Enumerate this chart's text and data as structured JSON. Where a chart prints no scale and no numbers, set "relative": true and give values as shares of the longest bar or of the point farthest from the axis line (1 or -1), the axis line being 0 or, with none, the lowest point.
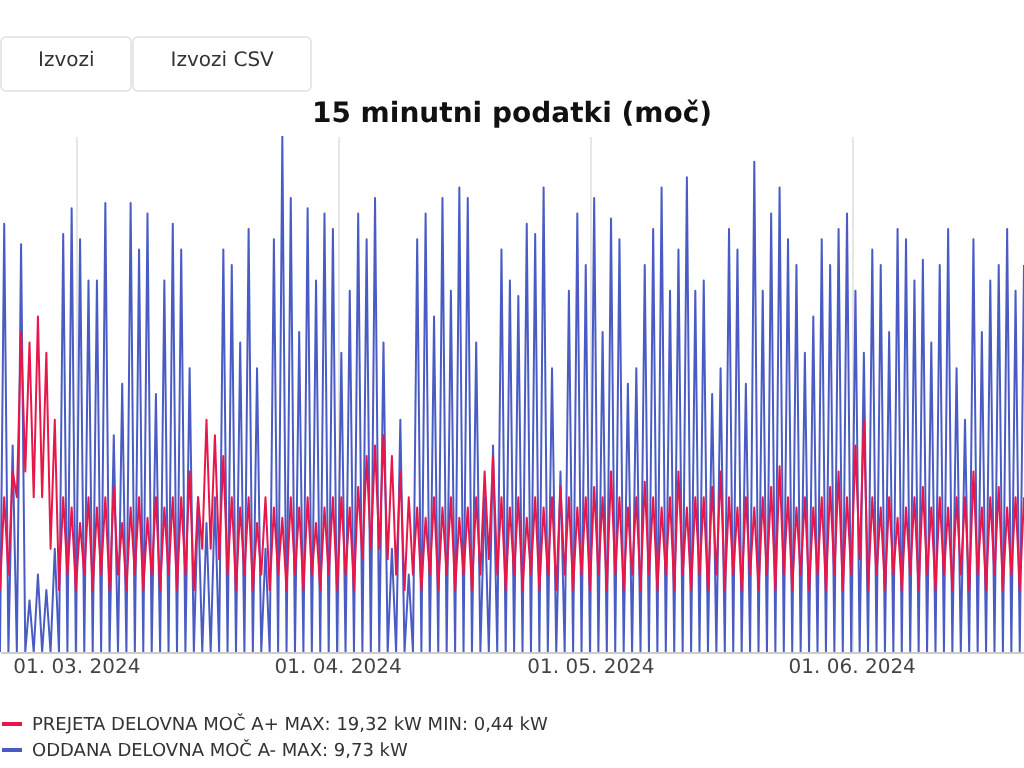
{
  "chart_data": {
    "type": "line",
    "title": "15 minutni podatki (moč)",
    "annotations": [
      "Izvozi",
      "Izvozi CSV"
    ],
    "relative": true,
    "grid": "x",
    "legend": "bottom",
    "marker": "none",
    "line_style": "solid",
    "xlim": [
      "2024-02-21",
      "2024-06-21T12:00"
    ],
    "xticks": [
      {
        "value": "2024-03-01",
        "label": "01. 03. 2024"
      },
      {
        "value": "2024-04-01",
        "label": "01. 04. 2024"
      },
      {
        "value": "2024-05-01",
        "label": "01. 05. 2024"
      },
      {
        "value": "2024-06-01",
        "label": "01. 06. 2024"
      }
    ],
    "x": [
      "2024-02-21T00:00",
      "2024-02-21T12:00",
      "2024-02-22T00:00",
      "2024-02-22T12:00",
      "2024-02-23T00:00",
      "2024-02-23T12:00",
      "2024-02-24T00:00",
      "2024-02-24T12:00",
      "2024-02-25T00:00",
      "2024-02-25T12:00",
      "2024-02-26T00:00",
      "2024-02-26T12:00",
      "2024-02-27T00:00",
      "2024-02-27T12:00",
      "2024-02-28T00:00",
      "2024-02-28T12:00",
      "2024-02-29T00:00",
      "2024-02-29T12:00",
      "2024-03-01T00:00",
      "2024-03-01T12:00",
      "2024-03-02T00:00",
      "2024-03-02T12:00",
      "2024-03-03T00:00",
      "2024-03-03T12:00",
      "2024-03-04T00:00",
      "2024-03-04T12:00",
      "2024-03-05T00:00",
      "2024-03-05T12:00",
      "2024-03-06T00:00",
      "2024-03-06T12:00",
      "2024-03-07T00:00",
      "2024-03-07T12:00",
      "2024-03-08T00:00",
      "2024-03-08T12:00",
      "2024-03-09T00:00",
      "2024-03-09T12:00",
      "2024-03-10T00:00",
      "2024-03-10T12:00",
      "2024-03-11T00:00",
      "2024-03-11T12:00",
      "2024-03-12T00:00",
      "2024-03-12T12:00",
      "2024-03-13T00:00",
      "2024-03-13T12:00",
      "2024-03-14T00:00",
      "2024-03-14T12:00",
      "2024-03-15T00:00",
      "2024-03-15T12:00",
      "2024-03-16T00:00",
      "2024-03-16T12:00",
      "2024-03-17T00:00",
      "2024-03-17T12:00",
      "2024-03-18T00:00",
      "2024-03-18T12:00",
      "2024-03-19T00:00",
      "2024-03-19T12:00",
      "2024-03-20T00:00",
      "2024-03-20T12:00",
      "2024-03-21T00:00",
      "2024-03-21T12:00",
      "2024-03-22T00:00",
      "2024-03-22T12:00",
      "2024-03-23T00:00",
      "2024-03-23T12:00",
      "2024-03-24T00:00",
      "2024-03-24T12:00",
      "2024-03-25T00:00",
      "2024-03-25T12:00",
      "2024-03-26T00:00",
      "2024-03-26T12:00",
      "2024-03-27T00:00",
      "2024-03-27T12:00",
      "2024-03-28T00:00",
      "2024-03-28T12:00",
      "2024-03-29T00:00",
      "2024-03-29T12:00",
      "2024-03-30T00:00",
      "2024-03-30T12:00",
      "2024-03-31T00:00",
      "2024-03-31T12:00",
      "2024-04-01T00:00",
      "2024-04-01T12:00",
      "2024-04-02T00:00",
      "2024-04-02T12:00",
      "2024-04-03T00:00",
      "2024-04-03T12:00",
      "2024-04-04T00:00",
      "2024-04-04T12:00",
      "2024-04-05T00:00",
      "2024-04-05T12:00",
      "2024-04-06T00:00",
      "2024-04-06T12:00",
      "2024-04-07T00:00",
      "2024-04-07T12:00",
      "2024-04-08T00:00",
      "2024-04-08T12:00",
      "2024-04-09T00:00",
      "2024-04-09T12:00",
      "2024-04-10T00:00",
      "2024-04-10T12:00",
      "2024-04-11T00:00",
      "2024-04-11T12:00",
      "2024-04-12T00:00",
      "2024-04-12T12:00",
      "2024-04-13T00:00",
      "2024-04-13T12:00",
      "2024-04-14T00:00",
      "2024-04-14T12:00",
      "2024-04-15T00:00",
      "2024-04-15T12:00",
      "2024-04-16T00:00",
      "2024-04-16T12:00",
      "2024-04-17T00:00",
      "2024-04-17T12:00",
      "2024-04-18T00:00",
      "2024-04-18T12:00",
      "2024-04-19T00:00",
      "2024-04-19T12:00",
      "2024-04-20T00:00",
      "2024-04-20T12:00",
      "2024-04-21T00:00",
      "2024-04-21T12:00",
      "2024-04-22T00:00",
      "2024-04-22T12:00",
      "2024-04-23T00:00",
      "2024-04-23T12:00",
      "2024-04-24T00:00",
      "2024-04-24T12:00",
      "2024-04-25T00:00",
      "2024-04-25T12:00",
      "2024-04-26T00:00",
      "2024-04-26T12:00",
      "2024-04-27T00:00",
      "2024-04-27T12:00",
      "2024-04-28T00:00",
      "2024-04-28T12:00",
      "2024-04-29T00:00",
      "2024-04-29T12:00",
      "2024-04-30T00:00",
      "2024-04-30T12:00",
      "2024-05-01T00:00",
      "2024-05-01T12:00",
      "2024-05-02T00:00",
      "2024-05-02T12:00",
      "2024-05-03T00:00",
      "2024-05-03T12:00",
      "2024-05-04T00:00",
      "2024-05-04T12:00",
      "2024-05-05T00:00",
      "2024-05-05T12:00",
      "2024-05-06T00:00",
      "2024-05-06T12:00",
      "2024-05-07T00:00",
      "2024-05-07T12:00",
      "2024-05-08T00:00",
      "2024-05-08T12:00",
      "2024-05-09T00:00",
      "2024-05-09T12:00",
      "2024-05-10T00:00",
      "2024-05-10T12:00",
      "2024-05-11T00:00",
      "2024-05-11T12:00",
      "2024-05-12T00:00",
      "2024-05-12T12:00",
      "2024-05-13T00:00",
      "2024-05-13T12:00",
      "2024-05-14T00:00",
      "2024-05-14T12:00",
      "2024-05-15T00:00",
      "2024-05-15T12:00",
      "2024-05-16T00:00",
      "2024-05-16T12:00",
      "2024-05-17T00:00",
      "2024-05-17T12:00",
      "2024-05-18T00:00",
      "2024-05-18T12:00",
      "2024-05-19T00:00",
      "2024-05-19T12:00",
      "2024-05-20T00:00",
      "2024-05-20T12:00",
      "2024-05-21T00:00",
      "2024-05-21T12:00",
      "2024-05-22T00:00",
      "2024-05-22T12:00",
      "2024-05-23T00:00",
      "2024-05-23T12:00",
      "2024-05-24T00:00",
      "2024-05-24T12:00",
      "2024-05-25T00:00",
      "2024-05-25T12:00",
      "2024-05-26T00:00",
      "2024-05-26T12:00",
      "2024-05-27T00:00",
      "2024-05-27T12:00",
      "2024-05-28T00:00",
      "2024-05-28T12:00",
      "2024-05-29T00:00",
      "2024-05-29T12:00",
      "2024-05-30T00:00",
      "2024-05-30T12:00",
      "2024-05-31T00:00",
      "2024-05-31T12:00",
      "2024-06-01T00:00",
      "2024-06-01T12:00",
      "2024-06-02T00:00",
      "2024-06-02T12:00",
      "2024-06-03T00:00",
      "2024-06-03T12:00",
      "2024-06-04T00:00",
      "2024-06-04T12:00",
      "2024-06-05T00:00",
      "2024-06-05T12:00",
      "2024-06-06T00:00",
      "2024-06-06T12:00",
      "2024-06-07T00:00",
      "2024-06-07T12:00",
      "2024-06-08T00:00",
      "2024-06-08T12:00",
      "2024-06-09T00:00",
      "2024-06-09T12:00",
      "2024-06-10T00:00",
      "2024-06-10T12:00",
      "2024-06-11T00:00",
      "2024-06-11T12:00",
      "2024-06-12T00:00",
      "2024-06-12T12:00",
      "2024-06-13T00:00",
      "2024-06-13T12:00",
      "2024-06-14T00:00",
      "2024-06-14T12:00",
      "2024-06-15T00:00",
      "2024-06-15T12:00",
      "2024-06-16T00:00",
      "2024-06-16T12:00",
      "2024-06-17T00:00",
      "2024-06-17T12:00",
      "2024-06-18T00:00",
      "2024-06-18T12:00",
      "2024-06-19T00:00",
      "2024-06-19T12:00",
      "2024-06-20T00:00",
      "2024-06-20T12:00",
      "2024-06-21T00:00",
      "2024-06-21T12:00"
    ],
    "series": [
      {
        "name": "PREJETA DELOVNA MOČ A+ MAX: 19,32 kW MIN: 0,44 kW",
        "color": "#e8174a",
        "values": [
          0.12,
          0.3,
          0.15,
          0.35,
          0.3,
          0.62,
          0.35,
          0.6,
          0.3,
          0.65,
          0.3,
          0.58,
          0.2,
          0.45,
          0.12,
          0.3,
          0.15,
          0.28,
          0.12,
          0.25,
          0.15,
          0.3,
          0.12,
          0.28,
          0.15,
          0.3,
          0.12,
          0.32,
          0.15,
          0.25,
          0.12,
          0.28,
          0.15,
          0.3,
          0.12,
          0.26,
          0.15,
          0.3,
          0.12,
          0.28,
          0.15,
          0.3,
          0.12,
          0.3,
          0.15,
          0.35,
          0.12,
          0.3,
          0.2,
          0.45,
          0.2,
          0.42,
          0.18,
          0.38,
          0.15,
          0.3,
          0.12,
          0.28,
          0.15,
          0.3,
          0.12,
          0.25,
          0.15,
          0.3,
          0.12,
          0.28,
          0.15,
          0.26,
          0.12,
          0.3,
          0.15,
          0.28,
          0.12,
          0.3,
          0.15,
          0.25,
          0.12,
          0.28,
          0.15,
          0.3,
          0.12,
          0.3,
          0.15,
          0.28,
          0.12,
          0.32,
          0.18,
          0.38,
          0.2,
          0.4,
          0.2,
          0.42,
          0.18,
          0.38,
          0.15,
          0.35,
          0.12,
          0.3,
          0.15,
          0.28,
          0.12,
          0.26,
          0.15,
          0.3,
          0.12,
          0.28,
          0.15,
          0.3,
          0.12,
          0.26,
          0.15,
          0.28,
          0.12,
          0.3,
          0.15,
          0.35,
          0.18,
          0.38,
          0.15,
          0.3,
          0.12,
          0.28,
          0.15,
          0.3,
          0.12,
          0.26,
          0.15,
          0.3,
          0.12,
          0.28,
          0.15,
          0.3,
          0.12,
          0.32,
          0.15,
          0.3,
          0.12,
          0.28,
          0.15,
          0.3,
          0.12,
          0.32,
          0.15,
          0.3,
          0.12,
          0.35,
          0.15,
          0.3,
          0.12,
          0.28,
          0.15,
          0.3,
          0.12,
          0.33,
          0.15,
          0.3,
          0.12,
          0.28,
          0.15,
          0.3,
          0.12,
          0.35,
          0.15,
          0.28,
          0.12,
          0.3,
          0.15,
          0.3,
          0.12,
          0.32,
          0.15,
          0.35,
          0.12,
          0.3,
          0.15,
          0.28,
          0.12,
          0.3,
          0.15,
          0.28,
          0.12,
          0.3,
          0.15,
          0.32,
          0.12,
          0.36,
          0.15,
          0.3,
          0.12,
          0.28,
          0.15,
          0.3,
          0.12,
          0.28,
          0.15,
          0.3,
          0.12,
          0.32,
          0.15,
          0.35,
          0.12,
          0.3,
          0.15,
          0.4,
          0.18,
          0.45,
          0.12,
          0.3,
          0.15,
          0.28,
          0.12,
          0.3,
          0.15,
          0.26,
          0.12,
          0.28,
          0.15,
          0.3,
          0.12,
          0.32,
          0.15,
          0.28,
          0.12,
          0.3,
          0.15,
          0.28,
          0.12,
          0.3,
          0.15,
          0.3,
          0.12,
          0.35,
          0.15,
          0.28,
          0.12,
          0.3,
          0.15,
          0.32,
          0.12,
          0.28,
          0.15,
          0.3,
          0.12,
          0.3
        ]
      },
      {
        "name": "ODDANA DELOVNA MOČ A- MAX: 9,73 kW",
        "color": "#4a5cc4",
        "values": [
          0,
          0.83,
          0,
          0.4,
          0,
          0.79,
          0,
          0.1,
          0,
          0.15,
          0,
          0.12,
          0,
          0.2,
          0,
          0.81,
          0,
          0.86,
          0,
          0.8,
          0,
          0.72,
          0,
          0.72,
          0,
          0.87,
          0,
          0.42,
          0,
          0.52,
          0,
          0.87,
          0,
          0.78,
          0,
          0.85,
          0,
          0.5,
          0,
          0.72,
          0,
          0.83,
          0,
          0.78,
          0,
          0.55,
          0,
          0.3,
          0,
          0.25,
          0,
          0.3,
          0,
          0.78,
          0,
          0.75,
          0,
          0.6,
          0,
          0.82,
          0,
          0.55,
          0,
          0.2,
          0,
          0.8,
          0,
          1,
          0,
          0.88,
          0,
          0.62,
          0,
          0.86,
          0,
          0.72,
          0,
          0.85,
          0,
          0.82,
          0,
          0.58,
          0,
          0.7,
          0,
          0.85,
          0,
          0.8,
          0,
          0.88,
          0,
          0.6,
          0,
          0.2,
          0,
          0.45,
          0,
          0.15,
          0,
          0.8,
          0,
          0.85,
          0,
          0.65,
          0,
          0.88,
          0,
          0.7,
          0,
          0.9,
          0,
          0.88,
          0,
          0.6,
          0,
          0.3,
          0,
          0.4,
          0,
          0.78,
          0,
          0.72,
          0,
          0.69,
          0,
          0.83,
          0,
          0.81,
          0,
          0.9,
          0,
          0.55,
          0,
          0.35,
          0,
          0.7,
          0,
          0.85,
          0,
          0.75,
          0,
          0.88,
          0,
          0.62,
          0,
          0.84,
          0,
          0.8,
          0,
          0.52,
          0,
          0.55,
          0,
          0.75,
          0,
          0.82,
          0,
          0.9,
          0,
          0.7,
          0,
          0.78,
          0,
          0.92,
          0,
          0.7,
          0,
          0.72,
          0,
          0.5,
          0,
          0.55,
          0,
          0.82,
          0,
          0.78,
          0,
          0.52,
          0,
          0.95,
          0,
          0.7,
          0,
          0.85,
          0,
          0.9,
          0,
          0.8,
          0,
          0.75,
          0,
          0.58,
          0,
          0.65,
          0,
          0.8,
          0,
          0.75,
          0,
          0.82,
          0,
          0.85,
          0,
          0.7,
          0,
          0.58,
          0,
          0.78,
          0,
          0.75,
          0,
          0.62,
          0,
          0.82,
          0,
          0.8,
          0,
          0.72,
          0,
          0.76,
          0,
          0.6,
          0,
          0.75,
          0,
          0.82,
          0,
          0.55,
          0,
          0.45,
          0,
          0.8,
          0,
          0.62,
          0,
          0.72,
          0,
          0.75,
          0,
          0.82,
          0,
          0.7,
          0,
          0.75
        ]
      }
    ]
  }
}
